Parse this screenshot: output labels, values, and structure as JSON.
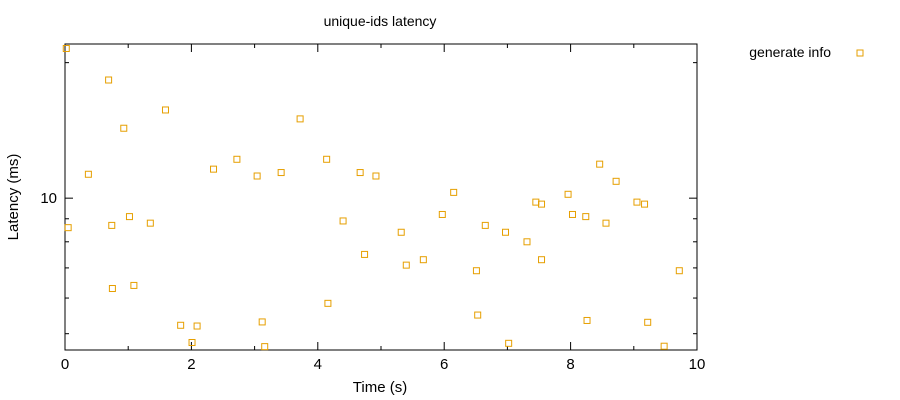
{
  "chart_data": {
    "type": "scatter",
    "title": "unique-ids latency",
    "xlabel": "Time (s)",
    "ylabel": "Latency (ms)",
    "xlim": [
      0,
      10
    ],
    "ylim": [
      4.6,
      22
    ],
    "yscale": "log",
    "grid": false,
    "legend_position": "top-right, outside plot",
    "x_ticks": [
      0,
      2,
      4,
      6,
      8,
      10
    ],
    "x_tick_labels": [
      "0",
      "2",
      "4",
      "6",
      "8",
      "10"
    ],
    "y_ticks": [
      10
    ],
    "y_tick_labels": [
      "10"
    ],
    "series": [
      {
        "name": "generate info",
        "color": "#e69f00",
        "marker": "open-square",
        "points": [
          [
            0.02,
            21.5
          ],
          [
            0.05,
            8.6
          ],
          [
            0.37,
            11.3
          ],
          [
            0.69,
            18.3
          ],
          [
            0.74,
            8.7
          ],
          [
            0.75,
            6.3
          ],
          [
            0.93,
            14.3
          ],
          [
            1.02,
            9.1
          ],
          [
            1.09,
            6.4
          ],
          [
            1.35,
            8.8
          ],
          [
            1.59,
            15.7
          ],
          [
            1.83,
            5.22
          ],
          [
            2.01,
            4.78
          ],
          [
            2.09,
            5.2
          ],
          [
            2.35,
            11.6
          ],
          [
            2.72,
            12.2
          ],
          [
            3.04,
            11.2
          ],
          [
            3.12,
            5.31
          ],
          [
            3.16,
            4.68
          ],
          [
            3.42,
            11.4
          ],
          [
            3.72,
            15.0
          ],
          [
            4.14,
            12.2
          ],
          [
            4.16,
            5.84
          ],
          [
            4.4,
            8.9
          ],
          [
            4.67,
            11.4
          ],
          [
            4.74,
            7.5
          ],
          [
            4.92,
            11.2
          ],
          [
            5.32,
            8.4
          ],
          [
            5.4,
            7.1
          ],
          [
            5.67,
            7.3
          ],
          [
            5.97,
            9.2
          ],
          [
            6.15,
            10.3
          ],
          [
            6.51,
            6.9
          ],
          [
            6.53,
            5.5
          ],
          [
            6.65,
            8.7
          ],
          [
            6.97,
            8.4
          ],
          [
            7.02,
            4.76
          ],
          [
            7.31,
            8.0
          ],
          [
            7.45,
            9.8
          ],
          [
            7.54,
            9.7
          ],
          [
            7.54,
            7.3
          ],
          [
            7.96,
            10.2
          ],
          [
            8.03,
            9.2
          ],
          [
            8.24,
            9.1
          ],
          [
            8.26,
            5.35
          ],
          [
            8.46,
            11.9
          ],
          [
            8.56,
            8.8
          ],
          [
            8.72,
            10.9
          ],
          [
            9.05,
            9.8
          ],
          [
            9.17,
            9.7
          ],
          [
            9.22,
            5.3
          ],
          [
            9.48,
            4.69
          ],
          [
            9.72,
            6.9
          ]
        ]
      }
    ]
  }
}
